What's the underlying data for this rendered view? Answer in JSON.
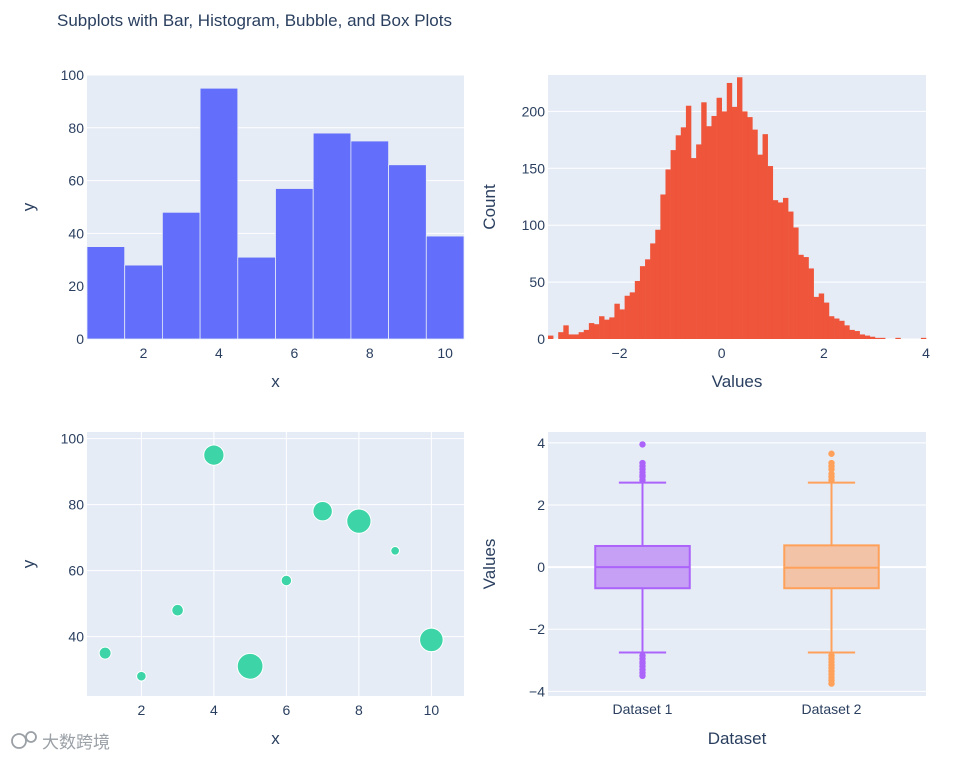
{
  "title": "Subplots with Bar, Histogram, Bubble, and Box Plots",
  "watermark": "大数跨境",
  "colors": {
    "plot_bg": "#e5ecf6",
    "grid": "#ffffff",
    "text": "#2a3f5f",
    "bar": "#636efa",
    "histogram": "#ef553b",
    "bubble": "#3dd4a8",
    "box1": "#ab63fa",
    "box1_fill": "#c6a0f5",
    "box2": "#ffa15a",
    "box2_fill": "#f2c3a6"
  },
  "chart_data": [
    {
      "type": "bar",
      "x": [
        1,
        2,
        3,
        4,
        5,
        6,
        7,
        8,
        9,
        10
      ],
      "values": [
        35,
        28,
        48,
        95,
        31,
        57,
        78,
        75,
        66,
        39
      ],
      "xlabel": "x",
      "ylabel": "y",
      "xlim": [
        0.5,
        10.5
      ],
      "ylim": [
        0,
        100
      ],
      "xticks": [
        2,
        4,
        6,
        8,
        10
      ],
      "yticks": [
        0,
        20,
        40,
        60,
        80,
        100
      ]
    },
    {
      "type": "histogram",
      "bin_start": -3.4,
      "bin_width": 0.1,
      "counts": [
        3,
        0,
        6,
        12,
        4,
        4,
        6,
        8,
        14,
        13,
        20,
        17,
        19,
        31,
        26,
        38,
        41,
        51,
        64,
        70,
        84,
        96,
        127,
        149,
        166,
        179,
        186,
        205,
        159,
        171,
        208,
        187,
        196,
        212,
        200,
        225,
        204,
        230,
        200,
        195,
        184,
        162,
        180,
        152,
        122,
        120,
        124,
        112,
        98,
        74,
        72,
        62,
        37,
        40,
        32,
        20,
        18,
        16,
        12,
        8,
        7,
        4,
        3,
        2,
        1,
        1,
        0,
        0,
        1,
        0,
        0,
        0,
        0,
        1
      ],
      "xlabel": "Values",
      "ylabel": "Count",
      "xlim": [
        -3.4,
        4.0
      ],
      "ylim": [
        0,
        232
      ],
      "xticks": [
        -2,
        0,
        2,
        4
      ],
      "yticks": [
        0,
        50,
        100,
        150,
        200
      ]
    },
    {
      "type": "scatter",
      "x": [
        1,
        2,
        3,
        4,
        5,
        6,
        7,
        8,
        9,
        10
      ],
      "y": [
        35,
        28,
        48,
        95,
        31,
        57,
        78,
        75,
        66,
        39
      ],
      "sizes": [
        17,
        11,
        16,
        49,
        79,
        13,
        45,
        70,
        9,
        66
      ],
      "xlabel": "x",
      "ylabel": "y",
      "xlim": [
        0.5,
        10.9
      ],
      "ylim": [
        22,
        102
      ],
      "xticks": [
        2,
        4,
        6,
        8,
        10
      ],
      "yticks": [
        40,
        60,
        80,
        100
      ]
    },
    {
      "type": "box",
      "categories": [
        "Dataset 1",
        "Dataset 2"
      ],
      "series": [
        {
          "name": "Dataset 1",
          "q1": -0.68,
          "median": 0.0,
          "q3": 0.68,
          "lower_fence": -2.75,
          "upper_fence": 2.72,
          "outliers": [
            2.8,
            2.9,
            2.95,
            3.05,
            3.15,
            3.25,
            3.35,
            3.95,
            -2.85,
            -2.95,
            -3.05,
            -3.1,
            -3.2,
            -3.3,
            -3.4,
            -3.5
          ]
        },
        {
          "name": "Dataset 2",
          "q1": -0.68,
          "median": -0.02,
          "q3": 0.7,
          "lower_fence": -2.75,
          "upper_fence": 2.72,
          "outliers": [
            2.8,
            2.9,
            3.0,
            3.15,
            3.25,
            3.35,
            3.65,
            -2.85,
            -2.95,
            -3.05,
            -3.15,
            -3.25,
            -3.35,
            -3.45,
            -3.55,
            -3.65,
            -3.75
          ]
        }
      ],
      "xlabel": "Dataset",
      "ylabel": "Values",
      "ylim": [
        -4.15,
        4.35
      ],
      "yticks": [
        -4,
        -2,
        0,
        2,
        4
      ]
    }
  ]
}
